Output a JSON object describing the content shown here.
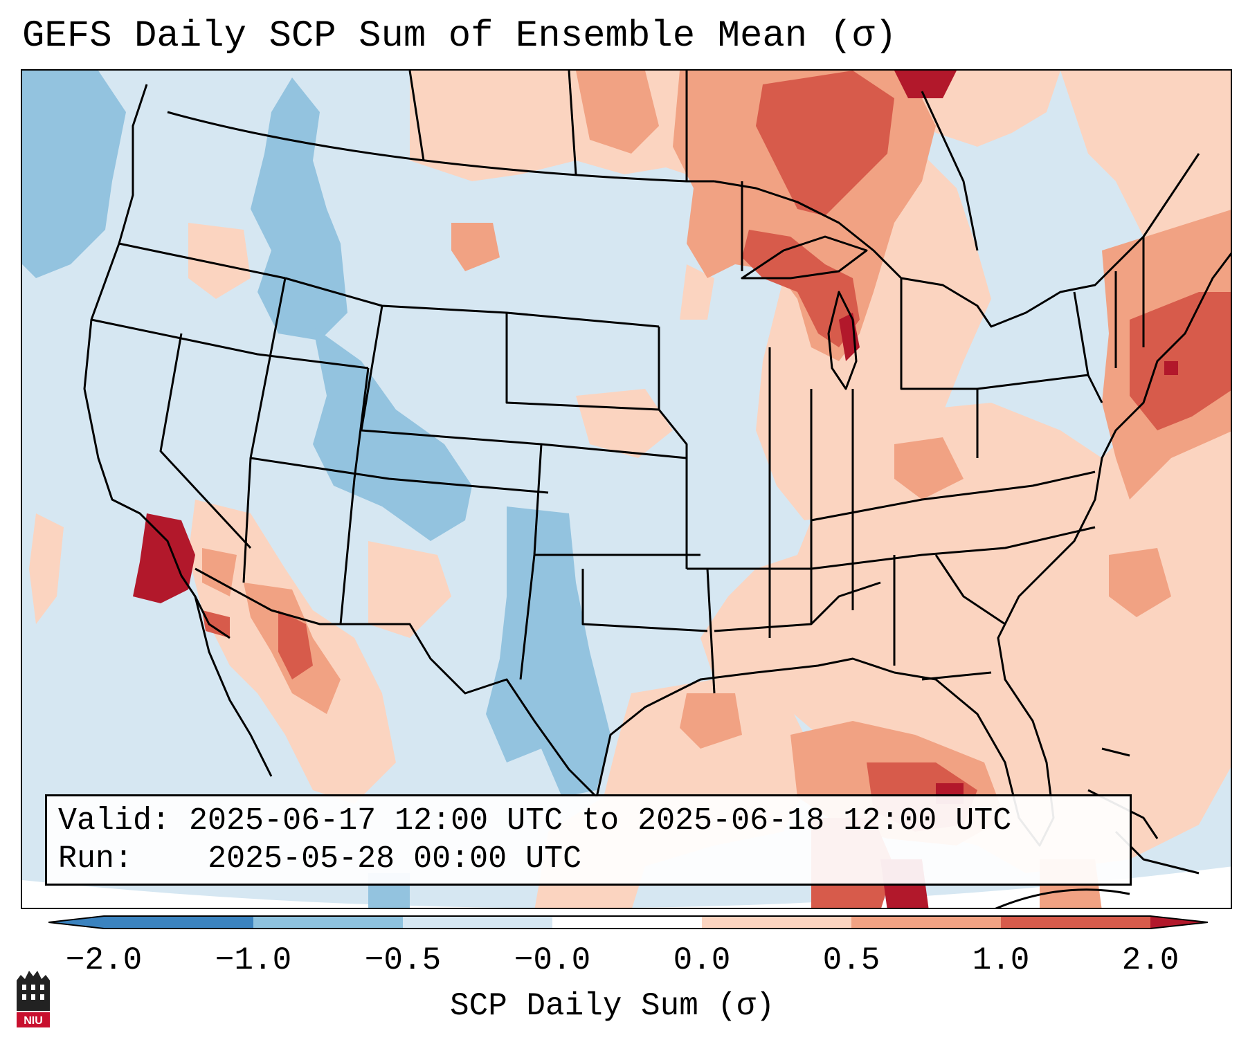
{
  "title": "GEFS Daily SCP Sum of Ensemble Mean (σ)",
  "info": {
    "valid_label": "Valid:",
    "valid_value": "2025-06-17 12:00 UTC to 2025-06-18 12:00 UTC",
    "run_label": "Run:",
    "run_value": "2025-05-28 00:00 UTC"
  },
  "colorbar": {
    "label": "SCP Daily Sum (σ)",
    "ticks": [
      "−2.0",
      "−1.0",
      "−0.5",
      "−0.0",
      "0.0",
      "0.5",
      "1.0",
      "2.0"
    ],
    "colors": [
      "#3b83bf",
      "#8ec2de",
      "#d6e7f2",
      "#ffffff",
      "#fbd4c0",
      "#f1a283",
      "#d75b4b",
      "#b2182b"
    ]
  },
  "logo": {
    "text": "NIU",
    "color": "#c8102e"
  },
  "map": {
    "region": "Contiguous United States",
    "background_color": "#d6e7f2"
  }
}
